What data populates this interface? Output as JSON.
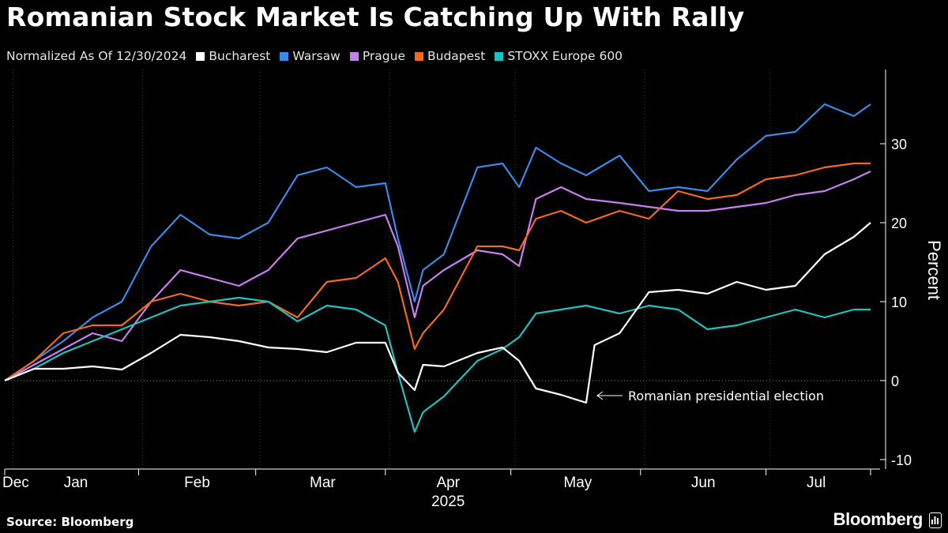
{
  "title": "Romanian Stock Market Is Catching Up With Rally",
  "subtitle": "Normalized As Of 12/30/2024",
  "source": "Source: Bloomberg",
  "brand": "Bloomberg",
  "annotation": "Romanian presidential election",
  "colors": {
    "background": "#000000",
    "axis": "#ffffff",
    "grid": "#444444"
  },
  "legend": [
    {
      "name": "Bucharest",
      "color": "#ffffff"
    },
    {
      "name": "Warsaw",
      "color": "#3a8ae8"
    },
    {
      "name": "Prague",
      "color": "#c77ff2"
    },
    {
      "name": "Budapest",
      "color": "#f26a1e"
    },
    {
      "name": "STOXX Europe 600",
      "color": "#1fc2c2"
    }
  ],
  "chart_data": {
    "type": "line",
    "title": "Romanian Stock Market Is Catching Up With Rally",
    "subtitle": "Normalized As Of 12/30/2024",
    "ylabel": "Percent",
    "xlabel": "2025",
    "ylim": [
      -11,
      40
    ],
    "yticks": [
      -10,
      0,
      10,
      20,
      30
    ],
    "x_range": [
      "2024-12-30",
      "2025-07-25"
    ],
    "month_labels": [
      "Dec",
      "Jan",
      "Feb",
      "Mar",
      "Apr",
      "May",
      "Jun",
      "Jul"
    ],
    "year_label": "2025",
    "grid": "vertical month separators",
    "legend_position": "top",
    "annotation": {
      "text": "Romanian presidential election",
      "x": "2025-05-18",
      "y": -2
    },
    "series": [
      {
        "name": "Bucharest",
        "color": "#ffffff",
        "x": [
          "2024-12-30",
          "2025-01-06",
          "2025-01-13",
          "2025-01-20",
          "2025-01-27",
          "2025-02-03",
          "2025-02-10",
          "2025-02-17",
          "2025-02-24",
          "2025-03-03",
          "2025-03-10",
          "2025-03-17",
          "2025-03-24",
          "2025-03-31",
          "2025-04-03",
          "2025-04-07",
          "2025-04-09",
          "2025-04-14",
          "2025-04-22",
          "2025-04-28",
          "2025-05-02",
          "2025-05-06",
          "2025-05-12",
          "2025-05-18",
          "2025-05-20",
          "2025-05-26",
          "2025-06-02",
          "2025-06-09",
          "2025-06-16",
          "2025-06-23",
          "2025-06-30",
          "2025-07-07",
          "2025-07-14",
          "2025-07-21",
          "2025-07-25"
        ],
        "values": [
          0,
          1.5,
          1.5,
          1.8,
          1.4,
          3.5,
          5.8,
          5.5,
          5.0,
          4.2,
          4.0,
          3.6,
          4.8,
          4.8,
          1.0,
          -1.2,
          2.0,
          1.8,
          3.5,
          4.2,
          2.5,
          -1.0,
          -1.8,
          -2.8,
          4.5,
          6.0,
          11.2,
          11.5,
          11.0,
          12.5,
          11.5,
          12.0,
          16.0,
          18.2,
          20.0
        ]
      },
      {
        "name": "Warsaw",
        "color": "#3a8ae8",
        "x": [
          "2024-12-30",
          "2025-01-06",
          "2025-01-13",
          "2025-01-20",
          "2025-01-27",
          "2025-02-03",
          "2025-02-10",
          "2025-02-17",
          "2025-02-24",
          "2025-03-03",
          "2025-03-10",
          "2025-03-17",
          "2025-03-24",
          "2025-03-31",
          "2025-04-03",
          "2025-04-07",
          "2025-04-09",
          "2025-04-14",
          "2025-04-22",
          "2025-04-28",
          "2025-05-02",
          "2025-05-06",
          "2025-05-12",
          "2025-05-18",
          "2025-05-26",
          "2025-06-02",
          "2025-06-09",
          "2025-06-16",
          "2025-06-23",
          "2025-06-30",
          "2025-07-07",
          "2025-07-14",
          "2025-07-21",
          "2025-07-25"
        ],
        "values": [
          0,
          2.5,
          5.0,
          8.0,
          10.0,
          17.0,
          21.0,
          18.5,
          18.0,
          20.0,
          26.0,
          27.0,
          24.5,
          25.0,
          18.0,
          10.0,
          14.0,
          16.0,
          27.0,
          27.5,
          24.5,
          29.5,
          27.5,
          26.0,
          28.5,
          24.0,
          24.5,
          24.0,
          28.0,
          31.0,
          31.5,
          35.0,
          33.5,
          35.0
        ]
      },
      {
        "name": "Prague",
        "color": "#c77ff2",
        "x": [
          "2024-12-30",
          "2025-01-06",
          "2025-01-13",
          "2025-01-20",
          "2025-01-27",
          "2025-02-03",
          "2025-02-10",
          "2025-02-17",
          "2025-02-24",
          "2025-03-03",
          "2025-03-10",
          "2025-03-17",
          "2025-03-24",
          "2025-03-31",
          "2025-04-03",
          "2025-04-07",
          "2025-04-09",
          "2025-04-14",
          "2025-04-22",
          "2025-04-28",
          "2025-05-02",
          "2025-05-06",
          "2025-05-12",
          "2025-05-18",
          "2025-05-26",
          "2025-06-02",
          "2025-06-09",
          "2025-06-16",
          "2025-06-23",
          "2025-06-30",
          "2025-07-07",
          "2025-07-14",
          "2025-07-21",
          "2025-07-25"
        ],
        "values": [
          0,
          2.0,
          4.0,
          6.0,
          5.0,
          10.0,
          14.0,
          13.0,
          12.0,
          14.0,
          18.0,
          19.0,
          20.0,
          21.0,
          17.0,
          8.0,
          12.0,
          14.0,
          16.5,
          16.0,
          14.5,
          23.0,
          24.5,
          23.0,
          22.5,
          22.0,
          21.5,
          21.5,
          22.0,
          22.5,
          23.5,
          24.0,
          25.5,
          26.5
        ]
      },
      {
        "name": "Budapest",
        "color": "#f26a1e",
        "x": [
          "2024-12-30",
          "2025-01-06",
          "2025-01-13",
          "2025-01-20",
          "2025-01-27",
          "2025-02-03",
          "2025-02-10",
          "2025-02-17",
          "2025-02-24",
          "2025-03-03",
          "2025-03-10",
          "2025-03-17",
          "2025-03-24",
          "2025-03-31",
          "2025-04-03",
          "2025-04-07",
          "2025-04-09",
          "2025-04-14",
          "2025-04-22",
          "2025-04-28",
          "2025-05-02",
          "2025-05-06",
          "2025-05-12",
          "2025-05-18",
          "2025-05-26",
          "2025-06-02",
          "2025-06-09",
          "2025-06-16",
          "2025-06-23",
          "2025-06-30",
          "2025-07-07",
          "2025-07-14",
          "2025-07-21",
          "2025-07-25"
        ],
        "values": [
          0,
          2.5,
          6.0,
          7.0,
          7.0,
          10.0,
          11.0,
          10.0,
          9.5,
          10.0,
          8.0,
          12.5,
          13.0,
          15.5,
          12.5,
          4.0,
          6.0,
          9.0,
          17.0,
          17.0,
          16.5,
          20.5,
          21.5,
          20.0,
          21.5,
          20.5,
          24.0,
          23.0,
          23.5,
          25.5,
          26.0,
          27.0,
          27.5,
          27.5
        ]
      },
      {
        "name": "STOXX Europe 600",
        "color": "#1fc2c2",
        "x": [
          "2024-12-30",
          "2025-01-06",
          "2025-01-13",
          "2025-01-20",
          "2025-01-27",
          "2025-02-03",
          "2025-02-10",
          "2025-02-17",
          "2025-02-24",
          "2025-03-03",
          "2025-03-10",
          "2025-03-17",
          "2025-03-24",
          "2025-03-31",
          "2025-04-03",
          "2025-04-07",
          "2025-04-09",
          "2025-04-14",
          "2025-04-22",
          "2025-04-28",
          "2025-05-02",
          "2025-05-06",
          "2025-05-12",
          "2025-05-18",
          "2025-05-26",
          "2025-06-02",
          "2025-06-09",
          "2025-06-16",
          "2025-06-23",
          "2025-06-30",
          "2025-07-07",
          "2025-07-14",
          "2025-07-21",
          "2025-07-25"
        ],
        "values": [
          0,
          1.5,
          3.5,
          5.0,
          6.5,
          8.0,
          9.5,
          10.0,
          10.5,
          10.0,
          7.5,
          9.5,
          9.0,
          7.0,
          1.0,
          -6.5,
          -4.0,
          -2.0,
          2.5,
          4.0,
          5.5,
          8.5,
          9.0,
          9.5,
          8.5,
          9.5,
          9.0,
          6.5,
          7.0,
          8.0,
          9.0,
          8.0,
          9.0,
          9.0
        ]
      }
    ]
  }
}
